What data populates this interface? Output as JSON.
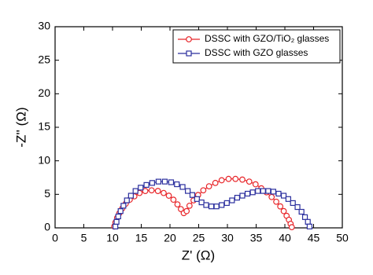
{
  "chart_data": {
    "type": "line",
    "xlabel": "Z' (Ω)",
    "ylabel": "-Z'' (Ω)",
    "xlim": [
      0,
      50
    ],
    "xticks": [
      0,
      5,
      10,
      15,
      20,
      25,
      30,
      35,
      40,
      45,
      50
    ],
    "ylim": [
      0,
      30
    ],
    "yticks": [
      0,
      5,
      10,
      15,
      20,
      25,
      30
    ],
    "legend": "upper right",
    "series": [
      {
        "name": "DSSC with GZO/TiO₂ glasses",
        "color": "#e8262a",
        "marker": "circle",
        "x": [
          10.3,
          10.5,
          10.8,
          11.2,
          11.7,
          12.3,
          13.0,
          13.8,
          14.7,
          15.7,
          16.8,
          17.9,
          18.9,
          19.8,
          20.6,
          21.3,
          21.9,
          22.4,
          22.9,
          23.4,
          24.1,
          24.9,
          25.8,
          26.8,
          27.9,
          29.0,
          30.2,
          31.4,
          32.6,
          33.8,
          34.9,
          35.9,
          36.8,
          37.7,
          38.5,
          39.2,
          39.8,
          40.3,
          40.7,
          41.0,
          41.2
        ],
        "values": [
          0.2,
          0.8,
          1.5,
          2.2,
          2.9,
          3.6,
          4.2,
          4.7,
          5.2,
          5.5,
          5.6,
          5.5,
          5.2,
          4.8,
          4.2,
          3.5,
          2.8,
          2.2,
          2.5,
          3.3,
          4.1,
          4.9,
          5.6,
          6.2,
          6.7,
          7.1,
          7.3,
          7.3,
          7.2,
          6.9,
          6.5,
          5.9,
          5.3,
          4.6,
          3.9,
          3.2,
          2.5,
          1.8,
          1.2,
          0.6,
          0.1
        ]
      },
      {
        "name": "DSSC with GZO glasses",
        "color": "#2b2f9e",
        "marker": "square",
        "x": [
          10.5,
          10.7,
          11.0,
          11.4,
          11.9,
          12.5,
          13.2,
          14.0,
          14.9,
          15.9,
          16.9,
          18.0,
          19.1,
          20.2,
          21.2,
          22.2,
          23.1,
          23.9,
          24.7,
          25.5,
          26.3,
          27.2,
          28.1,
          29.0,
          29.9,
          30.8,
          31.7,
          32.6,
          33.5,
          34.4,
          35.3,
          36.2,
          37.1,
          38.0,
          38.9,
          39.8,
          40.6,
          41.4,
          42.2,
          42.9,
          43.5,
          44.0,
          44.3
        ],
        "values": [
          0.2,
          0.9,
          1.7,
          2.5,
          3.3,
          4.1,
          4.8,
          5.5,
          6.0,
          6.4,
          6.7,
          6.9,
          6.9,
          6.8,
          6.5,
          6.1,
          5.5,
          4.9,
          4.3,
          3.8,
          3.4,
          3.2,
          3.2,
          3.4,
          3.7,
          4.1,
          4.5,
          4.8,
          5.1,
          5.3,
          5.5,
          5.5,
          5.5,
          5.4,
          5.1,
          4.8,
          4.3,
          3.7,
          3.1,
          2.4,
          1.6,
          0.9,
          0.2
        ]
      }
    ]
  }
}
